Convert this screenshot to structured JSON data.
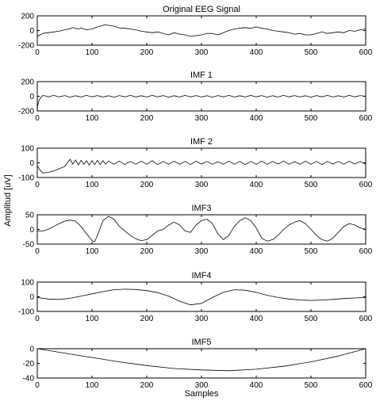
{
  "figure": {
    "ylabel": "Amplitud [uV]",
    "xlabel": "Samples"
  },
  "chart_data": [
    {
      "type": "line",
      "title": "Original EEG Signal",
      "xlabel": "",
      "ylabel": "",
      "xlim": [
        0,
        600
      ],
      "ylim": [
        -200,
        200
      ],
      "xticks": [
        0,
        100,
        200,
        300,
        400,
        500,
        600
      ],
      "yticks": [
        -200,
        0,
        200
      ],
      "grid": false,
      "series": [
        {
          "x": [
            0,
            5,
            10,
            20,
            30,
            40,
            50,
            60,
            65,
            70,
            75,
            80,
            90,
            100,
            110,
            120,
            125,
            130,
            140,
            150,
            160,
            170,
            180,
            190,
            200,
            210,
            220,
            230,
            240,
            250,
            260,
            270,
            280,
            290,
            300,
            310,
            320,
            330,
            340,
            350,
            360,
            370,
            380,
            390,
            400,
            410,
            420,
            430,
            440,
            450,
            460,
            470,
            480,
            490,
            500,
            510,
            520,
            530,
            540,
            550,
            560,
            570,
            580,
            590,
            600
          ],
          "y": [
            -80,
            -60,
            -40,
            -30,
            -20,
            -10,
            10,
            25,
            40,
            30,
            20,
            35,
            10,
            20,
            50,
            70,
            80,
            70,
            60,
            35,
            30,
            20,
            10,
            -10,
            -20,
            -30,
            -20,
            -40,
            -60,
            -30,
            -50,
            -60,
            -80,
            -70,
            -60,
            -40,
            -40,
            -60,
            -30,
            0,
            20,
            30,
            40,
            30,
            50,
            30,
            20,
            0,
            -10,
            -20,
            -30,
            -50,
            -40,
            -60,
            -60,
            -40,
            -20,
            -40,
            -30,
            -20,
            -30,
            0,
            -10,
            10,
            20
          ]
        }
      ]
    },
    {
      "type": "line",
      "title": "IMF 1",
      "xlabel": "",
      "ylabel": "",
      "xlim": [
        0,
        600
      ],
      "ylim": [
        -200,
        200
      ],
      "xticks": [
        0,
        100,
        200,
        300,
        400,
        500,
        600
      ],
      "yticks": [
        -200,
        0,
        200
      ],
      "grid": false,
      "series": [
        {
          "x": [
            0,
            3,
            6,
            10,
            15,
            20,
            30,
            40,
            50,
            60,
            70,
            80,
            90,
            100,
            110,
            120,
            130,
            140,
            150,
            160,
            170,
            180,
            190,
            200,
            210,
            220,
            230,
            240,
            250,
            260,
            270,
            280,
            290,
            300,
            310,
            320,
            330,
            340,
            350,
            360,
            370,
            380,
            390,
            400,
            410,
            420,
            430,
            440,
            450,
            460,
            470,
            480,
            490,
            500,
            510,
            520,
            530,
            540,
            550,
            560,
            570,
            580,
            590,
            600
          ],
          "y": [
            -150,
            -60,
            -20,
            10,
            5,
            -10,
            12,
            -8,
            10,
            -12,
            8,
            -10,
            12,
            -8,
            10,
            -10,
            8,
            -12,
            10,
            -8,
            12,
            -10,
            8,
            -10,
            12,
            -8,
            10,
            -12,
            8,
            -10,
            12,
            -8,
            10,
            -10,
            8,
            -12,
            10,
            -8,
            12,
            -10,
            8,
            -10,
            12,
            -8,
            10,
            -12,
            8,
            -10,
            12,
            -8,
            10,
            -10,
            8,
            -12,
            10,
            -8,
            12,
            -10,
            8,
            -10,
            12,
            -8,
            10,
            0
          ]
        }
      ]
    },
    {
      "type": "line",
      "title": "IMF 2",
      "xlabel": "",
      "ylabel": "",
      "xlim": [
        0,
        600
      ],
      "ylim": [
        -100,
        100
      ],
      "xticks": [
        0,
        100,
        200,
        300,
        400,
        500,
        600
      ],
      "yticks": [
        -100,
        0,
        100
      ],
      "grid": false,
      "series": [
        {
          "x": [
            0,
            5,
            10,
            20,
            30,
            40,
            50,
            55,
            60,
            65,
            70,
            75,
            80,
            85,
            90,
            95,
            100,
            105,
            110,
            115,
            120,
            125,
            130,
            140,
            150,
            160,
            170,
            180,
            190,
            200,
            210,
            220,
            230,
            240,
            250,
            260,
            270,
            280,
            290,
            300,
            310,
            320,
            330,
            340,
            350,
            360,
            370,
            380,
            390,
            400,
            410,
            420,
            430,
            440,
            450,
            460,
            470,
            480,
            490,
            500,
            510,
            520,
            530,
            540,
            550,
            560,
            570,
            580,
            590,
            600
          ],
          "y": [
            -20,
            -50,
            -70,
            -65,
            -55,
            -40,
            -25,
            0,
            25,
            -10,
            20,
            -15,
            18,
            -10,
            15,
            -15,
            15,
            -12,
            18,
            -12,
            15,
            -10,
            12,
            -10,
            12,
            -12,
            10,
            -10,
            12,
            -10,
            15,
            -12,
            10,
            -10,
            12,
            -10,
            10,
            -12,
            12,
            -8,
            10,
            -10,
            8,
            -10,
            12,
            -10,
            10,
            -12,
            10,
            -10,
            12,
            -10,
            10,
            -8,
            12,
            -10,
            8,
            -10,
            12,
            -10,
            10,
            -12,
            10,
            -8,
            10,
            -10,
            12,
            -8,
            10,
            -10
          ]
        }
      ]
    },
    {
      "type": "line",
      "title": "IMF3",
      "xlabel": "",
      "ylabel": "",
      "xlim": [
        0,
        600
      ],
      "ylim": [
        -50,
        50
      ],
      "xticks": [
        0,
        100,
        200,
        300,
        400,
        500,
        600
      ],
      "yticks": [
        -50,
        0,
        50
      ],
      "grid": false,
      "series": [
        {
          "x": [
            0,
            10,
            20,
            30,
            40,
            50,
            60,
            70,
            80,
            90,
            100,
            105,
            110,
            120,
            130,
            140,
            150,
            160,
            170,
            180,
            190,
            200,
            210,
            220,
            230,
            240,
            250,
            260,
            270,
            280,
            290,
            300,
            310,
            320,
            330,
            340,
            350,
            360,
            370,
            380,
            390,
            400,
            410,
            420,
            430,
            440,
            450,
            460,
            470,
            480,
            490,
            500,
            510,
            520,
            530,
            540,
            550,
            560,
            570,
            580,
            590,
            600
          ],
          "y": [
            -5,
            -5,
            0,
            10,
            20,
            28,
            32,
            28,
            10,
            -15,
            -38,
            -42,
            -20,
            30,
            45,
            35,
            10,
            -5,
            -20,
            -32,
            -38,
            -35,
            -20,
            -5,
            0,
            15,
            25,
            15,
            -5,
            -10,
            15,
            30,
            35,
            20,
            -15,
            -35,
            -20,
            10,
            30,
            40,
            30,
            5,
            -30,
            -40,
            -35,
            -20,
            0,
            15,
            25,
            30,
            20,
            0,
            -20,
            -35,
            -40,
            -30,
            -10,
            10,
            20,
            15,
            5,
            0
          ]
        }
      ]
    },
    {
      "type": "line",
      "title": "IMF4",
      "xlabel": "",
      "ylabel": "",
      "xlim": [
        0,
        600
      ],
      "ylim": [
        -100,
        100
      ],
      "xticks": [
        0,
        100,
        200,
        300,
        400,
        500,
        600
      ],
      "yticks": [
        -100,
        0,
        100
      ],
      "grid": false,
      "series": [
        {
          "x": [
            0,
            20,
            40,
            60,
            80,
            100,
            120,
            140,
            160,
            180,
            200,
            220,
            240,
            260,
            280,
            300,
            320,
            340,
            360,
            380,
            400,
            420,
            440,
            460,
            480,
            500,
            520,
            540,
            560,
            580,
            600
          ],
          "y": [
            -5,
            -15,
            -18,
            -10,
            5,
            20,
            35,
            48,
            52,
            50,
            42,
            28,
            5,
            -30,
            -55,
            -45,
            -5,
            30,
            48,
            45,
            30,
            10,
            -5,
            -15,
            -22,
            -25,
            -22,
            -18,
            -12,
            -8,
            -5
          ]
        }
      ]
    },
    {
      "type": "line",
      "title": "IMF5",
      "xlabel": "",
      "ylabel": "",
      "xlim": [
        0,
        600
      ],
      "ylim": [
        -40,
        0
      ],
      "xticks": [
        0,
        100,
        200,
        300,
        400,
        500,
        600
      ],
      "yticks": [
        -40,
        -20,
        0
      ],
      "grid": false,
      "series": [
        {
          "x": [
            0,
            50,
            100,
            150,
            200,
            250,
            300,
            350,
            400,
            450,
            500,
            550,
            600
          ],
          "y": [
            0,
            -6,
            -12,
            -18,
            -23,
            -27,
            -29,
            -30,
            -28,
            -24,
            -18,
            -10,
            0
          ]
        }
      ]
    }
  ]
}
